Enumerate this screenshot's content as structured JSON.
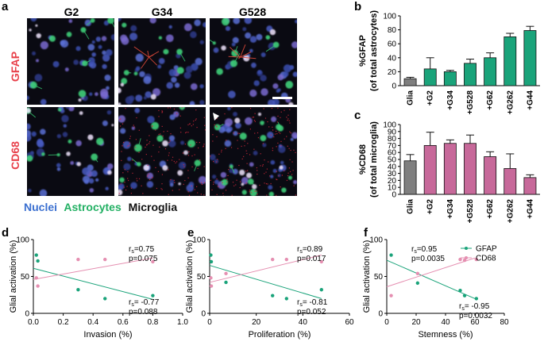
{
  "figure": {
    "panel_labels": {
      "a": "a",
      "b": "b",
      "c": "c",
      "d": "d",
      "e": "e",
      "f": "f"
    },
    "micrographs": {
      "columns": [
        "G2",
        "G34",
        "G528"
      ],
      "rows": [
        {
          "label": "GFAP",
          "color": "#e8404a"
        },
        {
          "label": "CD68",
          "color": "#e8404a"
        }
      ],
      "legend": [
        {
          "text": "Nuclei",
          "color": "#3a6fd0"
        },
        {
          "text": "Astrocytes",
          "color": "#22b063"
        },
        {
          "text": "Microglia",
          "color": "#111111"
        }
      ]
    }
  },
  "chart_data": [
    {
      "id": "b",
      "type": "bar",
      "ylabel_line1": "%GFAP",
      "ylabel_line2": "(of total astrocytes)",
      "categories": [
        "Glia",
        "+G2",
        "+G34",
        "+G528",
        "+G62",
        "+G262",
        "+G44"
      ],
      "values": [
        10,
        24,
        20,
        32,
        40,
        70,
        79
      ],
      "errors": [
        2,
        16,
        2,
        6,
        7,
        5,
        6
      ],
      "colors": [
        "#7f7f7f",
        "#1aa37a",
        "#1aa37a",
        "#1aa37a",
        "#1aa37a",
        "#1aa37a",
        "#1aa37a"
      ],
      "ylim": [
        0,
        100
      ],
      "yticks": [
        "0",
        "20",
        "40",
        "60",
        "80",
        "100"
      ]
    },
    {
      "id": "c",
      "type": "bar",
      "ylabel_line1": "%CD68",
      "ylabel_line2": "(of total microglia)",
      "categories": [
        "Glia",
        "+G2",
        "+G34",
        "+G528",
        "+G62",
        "+G262",
        "+G44"
      ],
      "values": [
        48,
        70,
        73,
        73,
        54,
        37,
        24
      ],
      "errors": [
        9,
        19,
        5,
        12,
        7,
        21,
        4
      ],
      "colors": [
        "#7f7f7f",
        "#c7699a",
        "#c7699a",
        "#c7699a",
        "#c7699a",
        "#c7699a",
        "#c7699a"
      ],
      "ylim": [
        0,
        100
      ],
      "yticks": [
        "0",
        "10",
        "20",
        "30",
        "40",
        "50",
        "60",
        "70",
        "80",
        "90",
        "100"
      ]
    },
    {
      "id": "d",
      "type": "scatter",
      "xlabel": "Invasion (%)",
      "ylabel": "Glial activation (%)",
      "xlim": [
        0,
        1.0
      ],
      "ylim": [
        0,
        100
      ],
      "xticks": [
        "0.0",
        "0.2",
        "0.4",
        "0.6",
        "0.8",
        "1.0"
      ],
      "yticks": [
        "0",
        "50",
        "100"
      ],
      "series": [
        {
          "name": "GFAP",
          "color": "#1aa37a",
          "points": [
            [
              0.02,
              79
            ],
            [
              0.03,
              71
            ],
            [
              0.3,
              32
            ],
            [
              0.48,
              20
            ],
            [
              0.8,
              24
            ]
          ],
          "line": [
            [
              0,
              61
            ],
            [
              0.8,
              19
            ]
          ]
        },
        {
          "name": "CD68",
          "color": "#e58fb1",
          "points": [
            [
              0.02,
              48
            ],
            [
              0.03,
              37
            ],
            [
              0.3,
              73
            ],
            [
              0.48,
              73
            ],
            [
              0.8,
              70
            ]
          ],
          "line": [
            [
              0,
              46
            ],
            [
              0.8,
              75
            ]
          ]
        }
      ],
      "annotations": [
        {
          "rs_label": "r",
          "rs_sub": "s",
          "rs_value": "=0.75",
          "p": "p=0.075"
        },
        {
          "rs_label": "r",
          "rs_sub": "s",
          "rs_value": "= -0.77",
          "p": "p=0.088"
        }
      ]
    },
    {
      "id": "e",
      "type": "scatter",
      "xlabel": "Proliferation (%)",
      "ylabel": "Glial activation (%)",
      "xlim": [
        0,
        60
      ],
      "ylim": [
        0,
        100
      ],
      "xticks": [
        "0",
        "20",
        "40",
        "60"
      ],
      "yticks": [
        "0",
        "50",
        "100"
      ],
      "series": [
        {
          "name": "GFAP",
          "color": "#1aa37a",
          "points": [
            [
              0.5,
              79
            ],
            [
              0.7,
              70
            ],
            [
              7,
              42
            ],
            [
              27,
              24
            ],
            [
              33,
              20
            ],
            [
              48,
              32
            ]
          ],
          "line": [
            [
              0,
              65
            ],
            [
              48,
              20
            ]
          ]
        },
        {
          "name": "CD68",
          "color": "#e58fb1",
          "points": [
            [
              0.5,
              48
            ],
            [
              0.7,
              37
            ],
            [
              7,
              54
            ],
            [
              27,
              73
            ],
            [
              33,
              73
            ],
            [
              48,
              70
            ]
          ],
          "line": [
            [
              0,
              42
            ],
            [
              48,
              79
            ]
          ]
        }
      ],
      "annotations": [
        {
          "rs_label": "r",
          "rs_sub": "s",
          "rs_value": "=0.89",
          "p": "p=0.017"
        },
        {
          "rs_label": "r",
          "rs_sub": "s",
          "rs_value": "= -0.81",
          "p": "p=0.052"
        }
      ]
    },
    {
      "id": "f",
      "type": "scatter",
      "xlabel": "Stemness (%)",
      "ylabel": "Glial activation (%)",
      "xlim": [
        0,
        80
      ],
      "ylim": [
        0,
        100
      ],
      "xticks": [
        "0",
        "20",
        "40",
        "60",
        "80"
      ],
      "yticks": [
        "0",
        "50",
        "100"
      ],
      "legend": [
        {
          "name": "GFAP",
          "color": "#1aa37a"
        },
        {
          "name": "CD68",
          "color": "#e58fb1"
        }
      ],
      "series": [
        {
          "name": "GFAP",
          "color": "#1aa37a",
          "points": [
            [
              3,
              79
            ],
            [
              21,
              41
            ],
            [
              50,
              31
            ],
            [
              53,
              24
            ],
            [
              61,
              20
            ]
          ],
          "line": [
            [
              0,
              72
            ],
            [
              60,
              20
            ]
          ]
        },
        {
          "name": "CD68",
          "color": "#e58fb1",
          "points": [
            [
              3,
              24
            ],
            [
              21,
              54
            ],
            [
              50,
              73
            ],
            [
              53,
              72
            ],
            [
              61,
              73
            ]
          ],
          "line": [
            [
              0,
              36
            ],
            [
              60,
              75
            ]
          ]
        }
      ],
      "annotations": [
        {
          "rs_label": "r",
          "rs_sub": "s",
          "rs_value": "=0.95",
          "p": "p=0.0035"
        },
        {
          "rs_label": "r",
          "rs_sub": "s",
          "rs_value": "= -0.95",
          "p": "p=0.0032"
        }
      ]
    }
  ]
}
